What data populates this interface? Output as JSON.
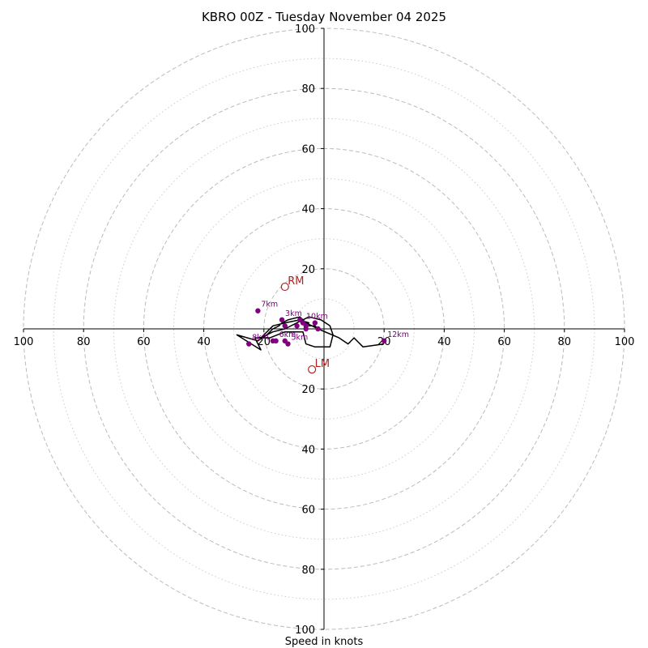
{
  "chart_data": {
    "type": "hodograph",
    "title": "KBRO 00Z - Tuesday November 04 2025",
    "xlabel": "Speed in knots",
    "range_knots": 100,
    "ring_major": [
      20,
      40,
      60,
      80,
      100
    ],
    "ring_minor": [
      10,
      30,
      50,
      70,
      90
    ],
    "ticks": {
      "x_left": [
        "100",
        "80",
        "60",
        "40",
        "20"
      ],
      "x_right": [
        "20",
        "40",
        "60",
        "80",
        "100"
      ],
      "y_top": [
        "100",
        "80",
        "60",
        "40",
        "20"
      ],
      "y_bottom": [
        "20",
        "40",
        "60",
        "80",
        "100"
      ]
    },
    "trace_uv": [
      [
        -2,
        0
      ],
      [
        -6,
        2
      ],
      [
        -8,
        4
      ],
      [
        -12,
        3
      ],
      [
        -14,
        2
      ],
      [
        -15,
        1
      ],
      [
        -17,
        0
      ],
      [
        -19,
        -2
      ],
      [
        -22,
        -4
      ],
      [
        -29,
        -2
      ],
      [
        -21,
        -7
      ],
      [
        -23,
        -3
      ],
      [
        -18,
        -3
      ],
      [
        -13,
        -1
      ],
      [
        -7,
        -1
      ],
      [
        -6,
        -5
      ],
      [
        -3,
        -6
      ],
      [
        2,
        -6
      ],
      [
        3,
        -2
      ],
      [
        2,
        1
      ],
      [
        -1,
        3
      ],
      [
        -5,
        4
      ],
      [
        -9,
        2
      ],
      [
        -13,
        0
      ],
      [
        -17,
        -1
      ],
      [
        -21,
        -3
      ],
      [
        -17,
        1
      ],
      [
        -13,
        2
      ],
      [
        -14,
        3
      ],
      [
        -13,
        2
      ],
      [
        -8,
        3
      ],
      [
        -5,
        2
      ],
      [
        -6,
        1
      ],
      [
        -3,
        1
      ],
      [
        -2,
        0
      ],
      [
        5,
        -3
      ],
      [
        8,
        -5
      ],
      [
        10,
        -3
      ],
      [
        13,
        -6
      ],
      [
        20,
        -5
      ]
    ],
    "height_markers": [
      {
        "label": "",
        "u": -2,
        "v": 0
      },
      {
        "label": "",
        "u": -6,
        "v": 1
      },
      {
        "label": "",
        "u": -9,
        "v": 1
      },
      {
        "label": "",
        "u": -8,
        "v": 3
      },
      {
        "label": "3km",
        "u": -14,
        "v": 3
      },
      {
        "label": "",
        "u": -13,
        "v": 1
      },
      {
        "label": "",
        "u": -13,
        "v": -4
      },
      {
        "label": "7km",
        "u": -22,
        "v": 6
      },
      {
        "label": "8km",
        "u": -25,
        "v": -5
      },
      {
        "label": "",
        "u": -17,
        "v": -4
      },
      {
        "label": "6km",
        "u": -16,
        "v": -4
      },
      {
        "label": "5km",
        "u": -12,
        "v": -5
      },
      {
        "label": "",
        "u": -6,
        "v": 0
      },
      {
        "label": "",
        "u": -3,
        "v": 2
      },
      {
        "label": "10km",
        "u": -7,
        "v": 2
      },
      {
        "label": "12km",
        "u": 20,
        "v": -4
      }
    ],
    "storm_motion": [
      {
        "label": "RM",
        "u": -13,
        "v": 14
      },
      {
        "label": "LM",
        "u": -4,
        "v": -13.5
      }
    ],
    "colors": {
      "trace": "#000000",
      "marker": "#800080",
      "motion": "#b22222",
      "ring": "#bbbbbb"
    }
  }
}
